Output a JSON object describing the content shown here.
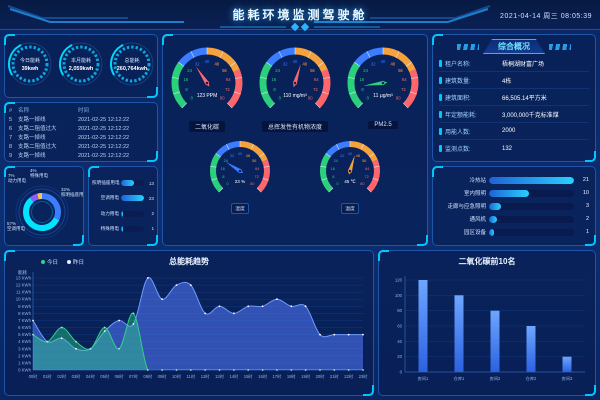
{
  "header": {
    "title": "能耗环境监测驾驶舱",
    "datetime": "2021-04-14 周三 08:05:39"
  },
  "kpi_rings": [
    {
      "label": "今日能耗",
      "value": "39kwh"
    },
    {
      "label": "本月能耗",
      "value": "2,059kwh"
    },
    {
      "label": "总能耗",
      "value": "260,764kwh"
    }
  ],
  "alarm_table": {
    "columns": [
      "#",
      "名称",
      "时间"
    ],
    "rows": [
      [
        "5",
        "支路一掉线",
        "2021-02-25 12:12:22"
      ],
      [
        "6",
        "支路二阻值过大",
        "2021-02-25 12:12:22"
      ],
      [
        "7",
        "支路一掉线",
        "2021-02-25 12:12:22"
      ],
      [
        "8",
        "支路二阻值过大",
        "2021-02-25 12:12:22"
      ],
      [
        "9",
        "支路一掉线",
        "2021-02-25 12:12:22"
      ]
    ]
  },
  "overview": {
    "title": "综合概况",
    "rows": [
      {
        "label": "租户名称:",
        "value": "梧桐湖财富广场"
      },
      {
        "label": "建筑数量:",
        "value": "4栋"
      },
      {
        "label": "建筑面积:",
        "value": "66,505.14平方米"
      },
      {
        "label": "年定额能耗:",
        "value": "3,000,000千克标准煤"
      },
      {
        "label": "用能人数:",
        "value": "2000"
      },
      {
        "label": "监测点数:",
        "value": "132"
      }
    ]
  },
  "colors": {
    "accent_cyan": "#00c8ff",
    "gauge_green": "#2bd07c",
    "gauge_blue": "#3c7dff",
    "gauge_orange": "#f6a23c",
    "gauge_red": "#fd666d",
    "bar_fill_start": "#1f62d6",
    "bar_fill_end": "#28d1ff"
  },
  "chart_data": [
    {
      "id": "energy_mix_donut",
      "type": "pie",
      "slices": [
        {
          "label": "照明插座用电",
          "pct": 32,
          "color": "#3c7dff"
        },
        {
          "label": "空调用电",
          "pct": 57,
          "color": "#00e4ff"
        },
        {
          "label": "动力用电",
          "pct": 7,
          "color": "#8a5cff"
        },
        {
          "label": "特殊用电",
          "pct": 4,
          "color": "#f7c948"
        }
      ]
    },
    {
      "id": "energy_mix_bars",
      "type": "bar",
      "categories": [
        "照明插座用电",
        "空调用电",
        "动力用电",
        "特殊用电"
      ],
      "values": [
        13,
        23,
        2,
        1
      ],
      "max": 23
    },
    {
      "id": "env_gauges",
      "type": "gauge",
      "min": 0,
      "max": 80,
      "tick_step": 8,
      "zones": [
        {
          "to": 24,
          "color": "#2bd07c"
        },
        {
          "to": 40,
          "color": "#3c7dff"
        },
        {
          "to": 60,
          "color": "#f6a23c"
        },
        {
          "to": 80,
          "color": "#fd666d"
        }
      ],
      "items": [
        {
          "label": "二氧化碳",
          "value_text": "123 PPM",
          "pointer": 30,
          "needle_color": "#fd666d",
          "size": "large"
        },
        {
          "label": "总挥发性有机物浓度",
          "value_text": "110 mg/m³",
          "pointer": 45,
          "needle_color": "#fd666d",
          "size": "large"
        },
        {
          "label": "PM2.5",
          "value_text": "11 μg/m³",
          "pointer": 11,
          "needle_color": "#2bd07c",
          "size": "large"
        },
        {
          "label": "湿度",
          "value_text": "23 %",
          "pointer": 23,
          "needle_color": "#3c7dff",
          "size": "small"
        },
        {
          "label": "温度",
          "value_text": "45 ℃",
          "pointer": 45,
          "needle_color": "#f6a23c",
          "size": "small"
        }
      ]
    },
    {
      "id": "device_bars",
      "type": "bar",
      "categories": [
        "冷热站",
        "室内照明",
        "走廊与应急照明",
        "通风机",
        "园区设备"
      ],
      "values": [
        21,
        10,
        3,
        2,
        1
      ],
      "max": 21
    },
    {
      "id": "energy_trend",
      "type": "area",
      "title": "总能耗趋势",
      "ylabel": "能耗",
      "unit": "KWh",
      "ymax": 13,
      "categories": [
        "00时",
        "01时",
        "02时",
        "03时",
        "04时",
        "05时",
        "06时",
        "07时",
        "08时",
        "09时",
        "10时",
        "11时",
        "12时",
        "13时",
        "14时",
        "15时",
        "16时",
        "17时",
        "18时",
        "19时",
        "20时",
        "21时",
        "22时",
        "23时"
      ],
      "series": [
        {
          "name": "昨日",
          "color": "#6f9bff",
          "fill": "rgba(84,124,255,0.55)",
          "marker": "#ffffff",
          "legend_color": "#e8f0ff",
          "values": [
            7,
            4,
            4.5,
            3,
            3,
            5.5,
            7,
            6.5,
            13,
            10,
            12,
            12,
            8,
            9,
            8,
            9,
            9,
            10,
            9,
            9,
            5,
            5,
            5,
            5
          ]
        },
        {
          "name": "今日",
          "color": "#2fd286",
          "fill": "rgba(47,210,134,0.42)",
          "marker": "#9ef0c4",
          "legend_color": "#2fd286",
          "values": [
            5,
            4,
            6,
            4,
            3,
            6,
            3,
            8,
            0,
            0,
            0,
            0,
            0,
            0,
            0,
            0,
            0,
            0,
            0,
            0,
            0,
            0,
            0,
            0
          ]
        }
      ]
    },
    {
      "id": "co2_top10",
      "type": "bar",
      "title": "二氧化碳前10名",
      "categories": [
        "房间1",
        "仓库1",
        "房间2",
        "仓库2",
        "房间3"
      ],
      "values": [
        120,
        100,
        80,
        60,
        20
      ],
      "ymax": 120,
      "ystep": 20
    }
  ]
}
